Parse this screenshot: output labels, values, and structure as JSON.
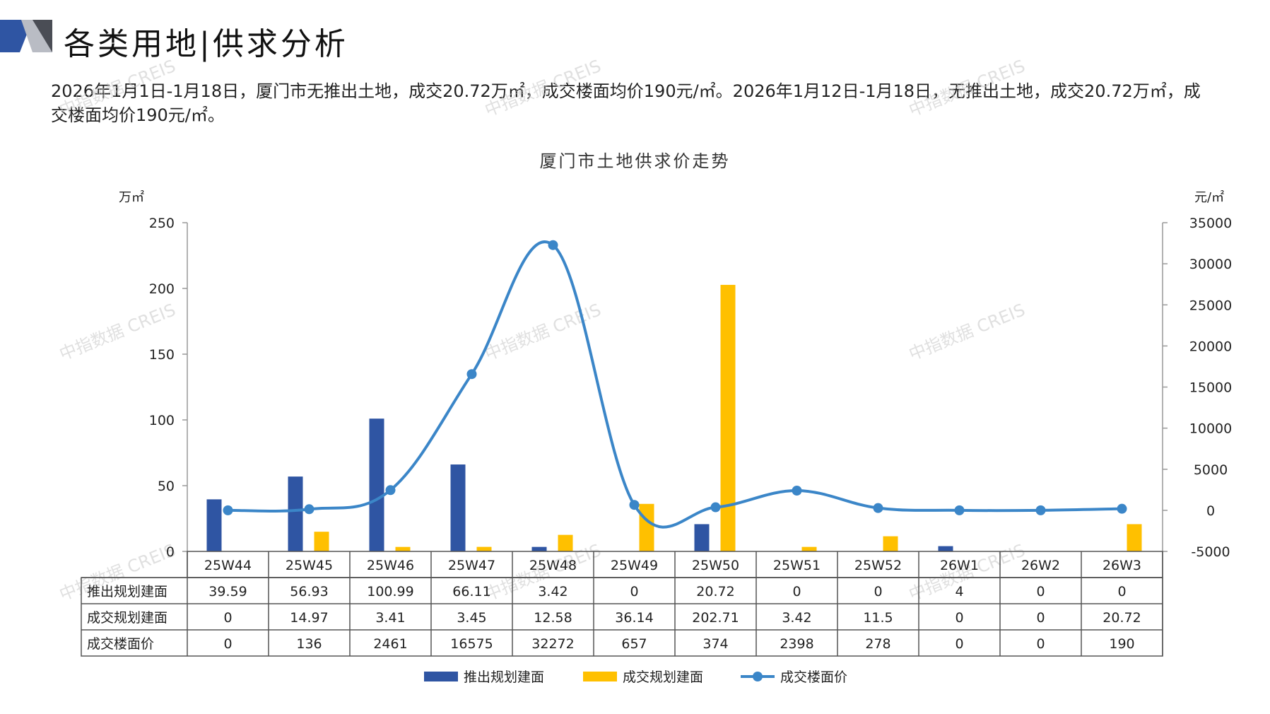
{
  "header": {
    "title": "各类用地|供求分析"
  },
  "summary": {
    "text": "2026年1月1日-1月18日，厦门市无推出土地，成交20.72万㎡，成交楼面均价190元/㎡。2026年1月12日-1月18日，无推出土地，成交20.72万㎡，成交楼面均价190元/㎡。"
  },
  "watermark": {
    "text": "中指数据 CREIS"
  },
  "colors": {
    "supply": "#2f55a3",
    "transaction": "#ffc000",
    "price": "#3b86c8",
    "grid": "#888888"
  },
  "chart_data": {
    "type": "bar",
    "title": "厦门市土地供求价走势",
    "y_left_unit": "万㎡",
    "y_right_unit": "元/㎡",
    "ylim_left": [
      0,
      250
    ],
    "ylim_right": [
      -5000,
      35000
    ],
    "y_left_ticks": [
      "0",
      "50",
      "100",
      "150",
      "200",
      "250"
    ],
    "y_right_ticks": [
      "-5000",
      "0",
      "5000",
      "10000",
      "15000",
      "20000",
      "25000",
      "30000",
      "35000"
    ],
    "categories": [
      "25W44",
      "25W45",
      "25W46",
      "25W47",
      "25W48",
      "25W49",
      "25W50",
      "25W51",
      "25W52",
      "26W1",
      "26W2",
      "26W3"
    ],
    "series": [
      {
        "name": "推出规划建面",
        "kind": "bar",
        "axis": "left",
        "values": [
          39.59,
          56.93,
          100.99,
          66.11,
          3.42,
          0,
          20.72,
          0,
          0,
          4,
          0,
          0
        ],
        "labels": [
          "39.59",
          "56.93",
          "100.99",
          "66.11",
          "3.42",
          "0",
          "20.72",
          "0",
          "0",
          "4",
          "0",
          "0"
        ]
      },
      {
        "name": "成交规划建面",
        "kind": "bar",
        "axis": "left",
        "values": [
          0,
          14.97,
          3.41,
          3.45,
          12.58,
          36.14,
          202.71,
          3.42,
          11.5,
          0,
          0,
          20.72
        ],
        "labels": [
          "0",
          "14.97",
          "3.41",
          "3.45",
          "12.58",
          "36.14",
          "202.71",
          "3.42",
          "11.5",
          "0",
          "0",
          "20.72"
        ]
      },
      {
        "name": "成交楼面价",
        "kind": "line",
        "axis": "right",
        "values": [
          0,
          136,
          2461,
          16575,
          32272,
          657,
          374,
          2398,
          278,
          0,
          0,
          190
        ],
        "labels": [
          "0",
          "136",
          "2461",
          "16575",
          "32272",
          "657",
          "374",
          "2398",
          "278",
          "0",
          "0",
          "190"
        ]
      }
    ],
    "legend": "bottom"
  }
}
